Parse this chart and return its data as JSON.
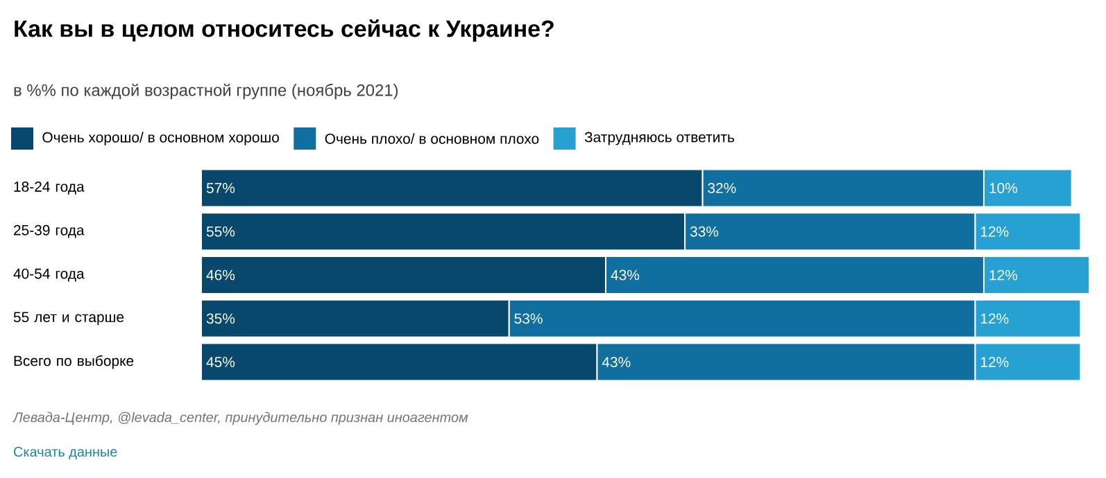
{
  "chart_data": {
    "type": "bar",
    "orientation": "horizontal",
    "stacked": true,
    "title": "Как вы в целом относитесь сейчас к Украине?",
    "subtitle": "в %% по каждой возрастной группе (ноябрь 2021)",
    "categories": [
      "18-24 года",
      "25-39 года",
      "40-54 года",
      "55 лет и старше",
      "Всего по выборке"
    ],
    "series": [
      {
        "name": "Очень хорошо/ в основном хорошо",
        "color": "#08486c",
        "values": [
          57,
          55,
          46,
          35,
          45
        ],
        "value_labels": [
          "57%",
          "55%",
          "46%",
          "35%",
          "45%"
        ]
      },
      {
        "name": "Очень плохо/ в основном плохо",
        "color": "#106f9e",
        "values": [
          32,
          33,
          43,
          53,
          43
        ],
        "value_labels": [
          "32%",
          "33%",
          "43%",
          "53%",
          "43%"
        ]
      },
      {
        "name": "Затрудняюсь ответить",
        "color": "#27a0d2",
        "values": [
          10,
          12,
          12,
          12,
          12
        ],
        "value_labels": [
          "10%",
          "12%",
          "12%",
          "12%",
          "12%"
        ]
      }
    ],
    "legend": "top",
    "annotations": [
      "Левада-Центр, @levada_center, принудительно признан иноагентом",
      "Скачать данные"
    ]
  }
}
